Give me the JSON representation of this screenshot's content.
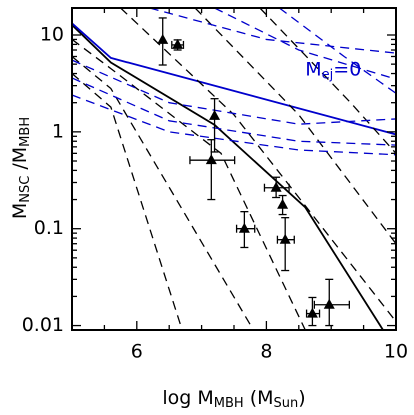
{
  "chart_data": {
    "type": "line",
    "x_label": [
      "log M",
      "MBH",
      " (M",
      "Sun",
      ")"
    ],
    "y_label": [
      "M",
      "NSC",
      " /M",
      "MBH"
    ],
    "annotation": {
      "text": [
        "M",
        "ej",
        "=0"
      ],
      "x": 8.6,
      "y": 4.4,
      "color": "#0000cc"
    },
    "xlim": [
      5,
      10
    ],
    "ylim": [
      0.009,
      19
    ],
    "log_y": true,
    "xticks": [
      6,
      8,
      10
    ],
    "xminor": [
      5.5,
      6.5,
      7,
      7.5,
      8.5,
      9,
      9.5
    ],
    "yticks": [
      0.01,
      0.1,
      1,
      10
    ],
    "yminor": [
      0.02,
      0.03,
      0.04,
      0.05,
      0.06,
      0.07,
      0.08,
      0.09,
      0.2,
      0.3,
      0.4,
      0.5,
      0.6,
      0.7,
      0.8,
      0.9,
      2,
      3,
      4,
      5,
      6,
      7,
      8,
      9
    ],
    "series": [
      {
        "color": "#000000",
        "dash": false,
        "x": [
          5,
          5.6,
          7.2,
          8.6,
          9.8
        ],
        "values": [
          12.7,
          5.2,
          1.18,
          0.166,
          0.009
        ]
      },
      {
        "color": "#0000cc",
        "dash": false,
        "x": [
          5,
          5.6,
          10
        ],
        "values": [
          13.2,
          5.8,
          0.94
        ]
      },
      {
        "color": "#000000",
        "dash": true,
        "x": [
          5,
          5.6,
          6.7
        ],
        "values": [
          4.0,
          1.8,
          0.009
        ]
      },
      {
        "color": "#000000",
        "dash": true,
        "x": [
          5,
          5.6,
          7.8
        ],
        "values": [
          6.0,
          2.8,
          0.009
        ]
      },
      {
        "color": "#000000",
        "dash": true,
        "x": [
          5,
          5.6,
          7.3,
          8.6
        ],
        "values": [
          9.0,
          4.5,
          0.6,
          0.009
        ]
      },
      {
        "color": "#000000",
        "dash": true,
        "x": [
          5.75,
          7.5,
          10
        ],
        "values": [
          19,
          1.5,
          0.011
        ]
      },
      {
        "color": "#000000",
        "dash": true,
        "x": [
          6.9,
          8.5,
          10
        ],
        "values": [
          19,
          1.5,
          0.07
        ]
      },
      {
        "color": "#000000",
        "dash": true,
        "x": [
          7.9,
          9.3,
          10
        ],
        "values": [
          19,
          2,
          0.6
        ]
      },
      {
        "color": "#0000cc",
        "dash": true,
        "x": [
          5,
          6.5,
          8.5,
          10
        ],
        "values": [
          3.6,
          1.3,
          0.8,
          0.73
        ]
      },
      {
        "color": "#0000cc",
        "dash": true,
        "x": [
          5,
          6.5,
          8.5,
          10
        ],
        "values": [
          2.4,
          1.0,
          0.65,
          0.58
        ]
      },
      {
        "color": "#0000cc",
        "dash": true,
        "x": [
          5,
          6.5,
          8.5,
          10
        ],
        "values": [
          5.5,
          2.0,
          1.2,
          1.36
        ]
      },
      {
        "color": "#0000cc",
        "dash": true,
        "x": [
          6.2,
          8,
          10
        ],
        "values": [
          19,
          9,
          6.5
        ]
      },
      {
        "color": "#0000cc",
        "dash": true,
        "x": [
          7.2,
          8.5,
          10
        ],
        "values": [
          19,
          7,
          3.5
        ]
      },
      {
        "color": "#0000cc",
        "dash": true,
        "x": [
          8.2,
          9.2,
          10
        ],
        "values": [
          19,
          6,
          2.5
        ]
      }
    ],
    "points": {
      "color": "#000000",
      "x": [
        6.4,
        6.63,
        7.2,
        7.15,
        7.66,
        8.15,
        8.25,
        8.29,
        8.71,
        8.97
      ],
      "values": [
        8.9,
        7.9,
        1.46,
        0.51,
        0.1,
        0.265,
        0.177,
        0.077,
        0.0133,
        0.0164
      ],
      "ylow": [
        4.9,
        7.0,
        0.62,
        0.2,
        0.064,
        0.21,
        0.14,
        0.037,
        0.01,
        0.01
      ],
      "yhigh": [
        15,
        8.9,
        2.2,
        0.83,
        0.15,
        0.34,
        0.22,
        0.13,
        0.0195,
        0.03
      ],
      "xlow": [
        null,
        6.54,
        null,
        6.82,
        7.54,
        7.97,
        null,
        8.17,
        8.62,
        8.74
      ],
      "xhigh": [
        null,
        6.72,
        null,
        7.51,
        7.82,
        8.35,
        null,
        8.43,
        8.82,
        9.28
      ]
    }
  }
}
